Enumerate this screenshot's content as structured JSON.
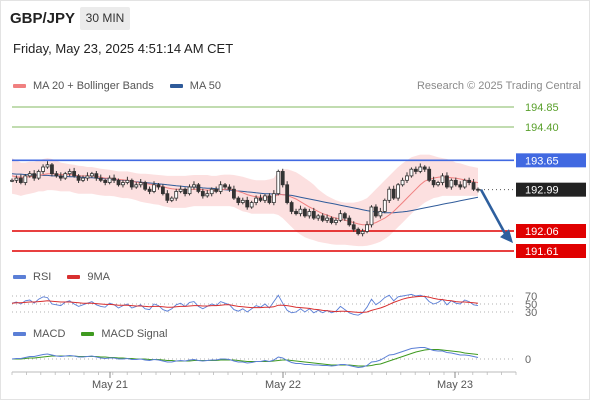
{
  "header": {
    "pair": "GBP/JPY",
    "timeframe": "30 MIN",
    "datetime": "Friday, May 23, 2025 4:51:14 AM CET"
  },
  "legend_main": {
    "ma20_bb": "MA 20 + Bollinger Bands",
    "ma50": "MA 50",
    "copyright": "Research © 2025 Trading Central"
  },
  "legend_rsi": {
    "rsi": "RSI",
    "ma9": "9MA"
  },
  "legend_macd": {
    "macd": "MACD",
    "signal": "MACD Signal"
  },
  "colors": {
    "ma20": "#f08080",
    "bollinger_fill": "#fbdada",
    "ma50": "#2f5b9a",
    "resistance": "#4169e1",
    "support": "#e00000",
    "target": "#5aa02c",
    "arrow": "#2e5f9e",
    "candle": "#333333",
    "rsi": "#5b7fd6",
    "rsi_ma": "#d83030",
    "macd": "#5b7fd6",
    "macd_signal": "#3f9a20",
    "current_price": "#222222"
  },
  "chart_data": [
    {
      "type": "candlestick",
      "title": "GBP/JPY 30 MIN",
      "x_labels": [
        "May 21",
        "May 22",
        "May 23"
      ],
      "ylim": [
        191.45,
        195.05
      ],
      "levels": [
        {
          "label": "194.85",
          "value": 194.85,
          "kind": "target"
        },
        {
          "label": "194.40",
          "value": 194.4,
          "kind": "target"
        },
        {
          "label": "193.65",
          "value": 193.65,
          "kind": "resistance"
        },
        {
          "label": "192.99",
          "value": 192.99,
          "kind": "current"
        },
        {
          "label": "192.06",
          "value": 192.06,
          "kind": "support"
        },
        {
          "label": "191.61",
          "value": 191.61,
          "kind": "support"
        }
      ],
      "close": [
        193.2,
        193.25,
        193.15,
        193.3,
        193.35,
        193.25,
        193.4,
        193.5,
        193.55,
        193.35,
        193.3,
        193.25,
        193.35,
        193.4,
        193.3,
        193.2,
        193.25,
        193.3,
        193.35,
        193.25,
        193.2,
        193.15,
        193.25,
        193.2,
        193.1,
        193.15,
        193.2,
        193.05,
        193.1,
        193.15,
        193.0,
        192.95,
        193.1,
        193.05,
        192.9,
        192.75,
        192.8,
        192.95,
        193.0,
        192.9,
        193.05,
        193.1,
        192.95,
        192.85,
        192.9,
        193.0,
        192.95,
        193.1,
        193.05,
        193.0,
        192.8,
        192.7,
        192.75,
        192.6,
        192.7,
        192.8,
        192.75,
        192.85,
        192.7,
        192.9,
        193.4,
        193.1,
        192.7,
        192.5,
        192.45,
        192.55,
        192.4,
        192.5,
        192.35,
        192.4,
        192.3,
        192.35,
        192.25,
        192.3,
        192.45,
        192.35,
        192.2,
        192.1,
        192.0,
        192.05,
        192.2,
        192.6,
        192.4,
        192.5,
        192.75,
        193.0,
        192.8,
        193.1,
        193.2,
        193.3,
        193.45,
        193.4,
        193.5,
        193.45,
        193.2,
        193.1,
        193.15,
        193.3,
        193.05,
        193.2,
        193.1,
        193.05,
        193.2,
        193.15,
        193.0,
        192.99
      ],
      "bb_upper": [
        193.7,
        193.65,
        193.6,
        193.6,
        193.62,
        193.62,
        193.65,
        193.68,
        193.7,
        193.68,
        193.65,
        193.6,
        193.58,
        193.56,
        193.55,
        193.53,
        193.52,
        193.5,
        193.5,
        193.48,
        193.46,
        193.45,
        193.44,
        193.42,
        193.4,
        193.4,
        193.4,
        193.38,
        193.36,
        193.35,
        193.35,
        193.34,
        193.33,
        193.32,
        193.31,
        193.3,
        193.3,
        193.3,
        193.3,
        193.3,
        193.31,
        193.32,
        193.32,
        193.32,
        193.32,
        193.3,
        193.3,
        193.32,
        193.33,
        193.33,
        193.32,
        193.3,
        193.28,
        193.25,
        193.22,
        193.2,
        193.2,
        193.2,
        193.22,
        193.25,
        193.4,
        193.45,
        193.45,
        193.42,
        193.38,
        193.32,
        193.25,
        193.18,
        193.1,
        193.0,
        192.92,
        192.85,
        192.8,
        192.75,
        192.72,
        192.7,
        192.7,
        192.7,
        192.72,
        192.75,
        192.8,
        192.9,
        193.0,
        193.1,
        193.2,
        193.3,
        193.4,
        193.5,
        193.58,
        193.65,
        193.72,
        193.75,
        193.78,
        193.78,
        193.78,
        193.75,
        193.72,
        193.7,
        193.68,
        193.65,
        193.6,
        193.58,
        193.55,
        193.52,
        193.5,
        193.48
      ],
      "bb_lower": [
        192.9,
        192.88,
        192.85,
        192.88,
        192.9,
        192.92,
        192.95,
        192.95,
        192.98,
        192.98,
        192.97,
        192.95,
        192.95,
        192.95,
        192.92,
        192.9,
        192.9,
        192.9,
        192.9,
        192.88,
        192.86,
        192.85,
        192.85,
        192.84,
        192.82,
        192.8,
        192.8,
        192.78,
        192.75,
        192.72,
        192.7,
        192.68,
        192.66,
        192.65,
        192.62,
        192.6,
        192.58,
        192.58,
        192.58,
        192.58,
        192.6,
        192.62,
        192.62,
        192.62,
        192.62,
        192.62,
        192.62,
        192.62,
        192.62,
        192.62,
        192.6,
        192.55,
        192.5,
        192.48,
        192.45,
        192.45,
        192.45,
        192.45,
        192.45,
        192.45,
        192.42,
        192.35,
        192.25,
        192.15,
        192.05,
        191.98,
        191.92,
        191.88,
        191.85,
        191.82,
        191.8,
        191.78,
        191.76,
        191.75,
        191.75,
        191.75,
        191.74,
        191.73,
        191.72,
        191.72,
        191.73,
        191.75,
        191.78,
        191.82,
        191.88,
        191.95,
        192.05,
        192.15,
        192.25,
        192.35,
        192.45,
        192.55,
        192.62,
        192.7,
        192.75,
        192.8,
        192.82,
        192.85,
        192.85,
        192.85,
        192.85,
        192.85,
        192.85,
        192.85,
        192.85,
        192.85
      ],
      "ma20": [
        193.3,
        193.28,
        193.27,
        193.27,
        193.28,
        193.29,
        193.31,
        193.33,
        193.35,
        193.35,
        193.34,
        193.33,
        193.33,
        193.33,
        193.32,
        193.3,
        193.3,
        193.3,
        193.3,
        193.29,
        193.27,
        193.25,
        193.25,
        193.24,
        193.22,
        193.21,
        193.2,
        193.18,
        193.16,
        193.15,
        193.13,
        193.11,
        193.1,
        193.08,
        193.06,
        193.03,
        193.01,
        193.0,
        193.0,
        192.99,
        192.99,
        193.0,
        193.0,
        192.99,
        192.98,
        192.98,
        192.98,
        192.99,
        193.0,
        193.0,
        192.98,
        192.95,
        192.92,
        192.88,
        192.85,
        192.83,
        192.82,
        192.82,
        192.82,
        192.83,
        192.88,
        192.88,
        192.86,
        192.82,
        192.78,
        192.72,
        192.66,
        192.6,
        192.55,
        192.5,
        192.45,
        192.42,
        192.38,
        192.35,
        192.33,
        192.3,
        192.28,
        192.25,
        192.22,
        192.2,
        192.2,
        192.22,
        192.25,
        192.3,
        192.35,
        192.42,
        192.5,
        192.6,
        192.7,
        192.8,
        192.9,
        193.0,
        193.1,
        193.18,
        193.22,
        193.25,
        193.27,
        193.28,
        193.27,
        193.26,
        193.25,
        193.23,
        193.21,
        193.19,
        193.17,
        193.15
      ],
      "ma50": [
        193.35,
        193.34,
        193.34,
        193.33,
        193.33,
        193.32,
        193.32,
        193.31,
        193.31,
        193.3,
        193.3,
        193.29,
        193.29,
        193.28,
        193.28,
        193.27,
        193.27,
        193.26,
        193.26,
        193.25,
        193.24,
        193.24,
        193.23,
        193.22,
        193.21,
        193.2,
        193.19,
        193.18,
        193.17,
        193.16,
        193.15,
        193.14,
        193.13,
        193.12,
        193.11,
        193.1,
        193.09,
        193.08,
        193.07,
        193.06,
        193.05,
        193.05,
        193.04,
        193.03,
        193.02,
        193.02,
        193.01,
        193.0,
        192.99,
        192.98,
        192.97,
        192.96,
        192.95,
        192.94,
        192.93,
        192.92,
        192.91,
        192.9,
        192.9,
        192.89,
        192.89,
        192.88,
        192.87,
        192.86,
        192.84,
        192.82,
        192.8,
        192.78,
        192.76,
        192.74,
        192.72,
        192.7,
        192.68,
        192.66,
        192.64,
        192.62,
        192.6,
        192.58,
        192.56,
        192.54,
        192.52,
        192.5,
        192.49,
        192.48,
        192.47,
        192.47,
        192.47,
        192.48,
        192.49,
        192.5,
        192.52,
        192.54,
        192.56,
        192.58,
        192.6,
        192.62,
        192.64,
        192.66,
        192.68,
        192.7,
        192.72,
        192.74,
        192.76,
        192.78,
        192.8,
        192.82
      ],
      "forecast_arrow": {
        "from": 192.99,
        "to": 191.9
      }
    },
    {
      "type": "line",
      "title": "RSI",
      "levels": [
        30,
        50,
        70
      ],
      "level_labels": [
        "70",
        "50",
        "30"
      ],
      "ylim": [
        20,
        80
      ],
      "series": [
        {
          "name": "RSI",
          "values": [
            52,
            55,
            50,
            58,
            60,
            52,
            62,
            68,
            66,
            50,
            48,
            46,
            55,
            58,
            50,
            44,
            48,
            52,
            56,
            48,
            44,
            42,
            52,
            48,
            40,
            46,
            50,
            40,
            44,
            48,
            38,
            36,
            50,
            46,
            36,
            32,
            38,
            48,
            52,
            44,
            54,
            56,
            44,
            38,
            44,
            50,
            46,
            56,
            52,
            48,
            36,
            32,
            38,
            30,
            38,
            46,
            42,
            50,
            40,
            56,
            72,
            52,
            34,
            28,
            30,
            38,
            30,
            38,
            28,
            34,
            28,
            34,
            28,
            32,
            44,
            36,
            28,
            24,
            22,
            28,
            42,
            62,
            48,
            56,
            66,
            72,
            58,
            68,
            70,
            72,
            74,
            70,
            72,
            68,
            56,
            50,
            54,
            62,
            48,
            58,
            52,
            50,
            60,
            56,
            48,
            46
          ]
        },
        {
          "name": "9MA",
          "values": [
            52,
            53,
            53,
            54,
            55,
            55,
            56,
            57,
            58,
            57,
            56,
            55,
            55,
            55,
            54,
            53,
            52,
            52,
            52,
            51,
            50,
            49,
            49,
            48,
            47,
            47,
            47,
            46,
            45,
            45,
            44,
            43,
            44,
            44,
            43,
            42,
            42,
            43,
            44,
            44,
            45,
            46,
            46,
            45,
            45,
            46,
            46,
            47,
            48,
            48,
            46,
            44,
            43,
            42,
            41,
            41,
            41,
            42,
            42,
            43,
            47,
            47,
            46,
            44,
            42,
            41,
            40,
            39,
            37,
            36,
            34,
            33,
            32,
            31,
            32,
            32,
            31,
            30,
            29,
            29,
            30,
            34,
            37,
            40,
            44,
            49,
            54,
            58,
            62,
            65,
            67,
            68,
            69,
            69,
            67,
            64,
            62,
            61,
            59,
            58,
            56,
            55,
            55,
            54,
            53,
            52
          ]
        }
      ]
    },
    {
      "type": "line",
      "title": "MACD",
      "levels": [
        0
      ],
      "level_labels": [
        "0"
      ],
      "ylim": [
        -0.3,
        0.3
      ],
      "series": [
        {
          "name": "MACD",
          "values": [
            0.0,
            0.01,
            0.01,
            0.03,
            0.05,
            0.05,
            0.07,
            0.09,
            0.1,
            0.08,
            0.06,
            0.05,
            0.06,
            0.07,
            0.06,
            0.04,
            0.04,
            0.05,
            0.06,
            0.04,
            0.02,
            0.01,
            0.02,
            0.02,
            0.0,
            0.0,
            0.01,
            -0.01,
            -0.01,
            0.0,
            -0.02,
            -0.03,
            -0.01,
            -0.02,
            -0.04,
            -0.06,
            -0.06,
            -0.04,
            -0.03,
            -0.04,
            -0.02,
            -0.01,
            -0.03,
            -0.04,
            -0.03,
            -0.02,
            -0.02,
            0.0,
            0.0,
            -0.01,
            -0.04,
            -0.06,
            -0.06,
            -0.08,
            -0.07,
            -0.05,
            -0.05,
            -0.03,
            -0.05,
            -0.02,
            0.04,
            0.02,
            -0.03,
            -0.07,
            -0.09,
            -0.09,
            -0.11,
            -0.11,
            -0.12,
            -0.12,
            -0.13,
            -0.13,
            -0.14,
            -0.13,
            -0.11,
            -0.11,
            -0.13,
            -0.15,
            -0.17,
            -0.16,
            -0.13,
            -0.06,
            -0.05,
            -0.02,
            0.03,
            0.08,
            0.09,
            0.12,
            0.15,
            0.18,
            0.21,
            0.22,
            0.23,
            0.23,
            0.2,
            0.17,
            0.16,
            0.16,
            0.13,
            0.12,
            0.1,
            0.08,
            0.08,
            0.07,
            0.05,
            0.03
          ]
        },
        {
          "name": "MACD Signal",
          "values": [
            0.0,
            0.0,
            0.0,
            0.01,
            0.02,
            0.02,
            0.03,
            0.04,
            0.05,
            0.06,
            0.06,
            0.06,
            0.06,
            0.06,
            0.06,
            0.05,
            0.05,
            0.05,
            0.05,
            0.05,
            0.04,
            0.04,
            0.03,
            0.03,
            0.02,
            0.02,
            0.01,
            0.01,
            0.0,
            0.0,
            0.0,
            -0.01,
            -0.01,
            -0.01,
            -0.02,
            -0.03,
            -0.03,
            -0.04,
            -0.04,
            -0.04,
            -0.04,
            -0.03,
            -0.03,
            -0.03,
            -0.03,
            -0.03,
            -0.03,
            -0.02,
            -0.02,
            -0.02,
            -0.02,
            -0.03,
            -0.04,
            -0.05,
            -0.05,
            -0.05,
            -0.05,
            -0.05,
            -0.05,
            -0.04,
            -0.03,
            -0.02,
            -0.02,
            -0.03,
            -0.04,
            -0.05,
            -0.06,
            -0.07,
            -0.08,
            -0.09,
            -0.1,
            -0.11,
            -0.12,
            -0.12,
            -0.12,
            -0.12,
            -0.12,
            -0.13,
            -0.14,
            -0.14,
            -0.14,
            -0.13,
            -0.11,
            -0.1,
            -0.07,
            -0.04,
            -0.01,
            0.02,
            0.05,
            0.08,
            0.11,
            0.14,
            0.16,
            0.18,
            0.19,
            0.19,
            0.19,
            0.18,
            0.17,
            0.16,
            0.15,
            0.14,
            0.12,
            0.11,
            0.1,
            0.09
          ]
        }
      ]
    }
  ]
}
